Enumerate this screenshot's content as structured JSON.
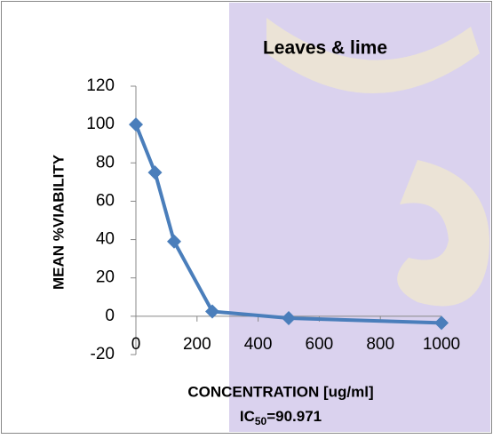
{
  "chart_data": {
    "type": "line",
    "title": "Leaves & lime",
    "x_label": "CONCENTRATION [ug/ml]",
    "y_label": "MEAN %VIABILITY",
    "annotation": {
      "text": "IC",
      "subscript": "50",
      "rest": "=90.971"
    },
    "x": [
      0,
      62.5,
      125,
      250,
      500,
      1000
    ],
    "series": [
      {
        "name": "Leaves & lime",
        "color": "#4a7ebb",
        "values": [
          100,
          75,
          39,
          2.5,
          -1,
          -3.5
        ]
      }
    ],
    "xlim": [
      0,
      1000
    ],
    "xticks": [
      0,
      200,
      400,
      600,
      800,
      1000
    ],
    "ylim": [
      -20,
      120
    ],
    "yticks": [
      -20,
      0,
      20,
      40,
      60,
      80,
      100,
      120
    ]
  }
}
